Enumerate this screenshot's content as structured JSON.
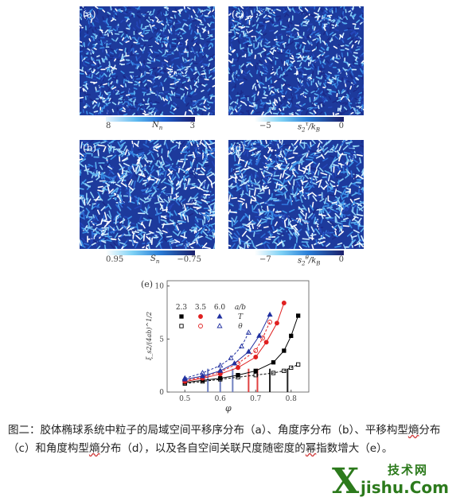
{
  "panels": [
    {
      "label": "(a)",
      "seed": 11
    },
    {
      "label": "(c)",
      "seed": 37
    },
    {
      "label": "(b)",
      "seed": 53
    },
    {
      "label": "(d)",
      "seed": 71
    }
  ],
  "colorbars": {
    "a": {
      "left": "8",
      "right": "3",
      "label_main": "N",
      "label_sub": "n"
    },
    "c": {
      "left": "−5",
      "right": "0",
      "label_main": "s",
      "label_sub": "2",
      "label_sup": "τ",
      "label_tail": "/k",
      "label_tail_sub": "B"
    },
    "b": {
      "left": "0.95",
      "right": "−0.75",
      "label_main": "S",
      "label_sub": "n"
    },
    "d": {
      "left": "−7",
      "right": "0",
      "label_main": "s",
      "label_sub": "2",
      "label_sup": "θ",
      "label_tail": "/k",
      "label_tail_sub": "B"
    }
  },
  "chart_data": {
    "type": "scatter",
    "panel_label": "(e)",
    "xlabel": "φ",
    "ylabel": "ξ_s2/(4ab)^1/2",
    "xlim": [
      0.45,
      0.85
    ],
    "ylim": [
      0,
      10.5
    ],
    "xticks": [
      "0.5",
      "0.6",
      "0.7",
      "0.8"
    ],
    "yticks": [
      "0",
      "5",
      "10"
    ],
    "legend": {
      "columns": [
        "2.3",
        "3.5",
        "6.0",
        "a/b"
      ],
      "rows": [
        "T",
        "θ"
      ]
    },
    "series": [
      {
        "name": "2.3 T",
        "color": "#000000",
        "marker": "square-filled",
        "x": [
          0.5,
          0.55,
          0.6,
          0.65,
          0.7,
          0.75,
          0.78,
          0.8,
          0.82
        ],
        "y": [
          0.9,
          1.1,
          1.3,
          1.6,
          2.0,
          2.8,
          3.9,
          5.3,
          7.2
        ]
      },
      {
        "name": "2.3 θ",
        "color": "#000000",
        "marker": "square-open",
        "x": [
          0.5,
          0.55,
          0.6,
          0.65,
          0.7,
          0.75,
          0.78,
          0.8,
          0.82
        ],
        "y": [
          0.8,
          1.0,
          1.2,
          1.4,
          1.6,
          1.8,
          2.0,
          2.3,
          2.6
        ]
      },
      {
        "name": "3.5 T",
        "color": "#e02020",
        "marker": "circle-filled",
        "x": [
          0.5,
          0.55,
          0.6,
          0.65,
          0.7,
          0.73,
          0.76,
          0.78
        ],
        "y": [
          1.0,
          1.3,
          1.7,
          2.3,
          3.3,
          4.7,
          6.5,
          8.4
        ]
      },
      {
        "name": "3.5 θ",
        "color": "#e02020",
        "marker": "circle-open",
        "x": [
          0.5,
          0.55,
          0.6,
          0.65,
          0.7,
          0.72,
          0.74
        ],
        "y": [
          1.1,
          1.4,
          1.9,
          2.7,
          3.9,
          5.1,
          6.6
        ]
      },
      {
        "name": "6.0 T",
        "color": "#2030a0",
        "marker": "triangle-filled",
        "x": [
          0.5,
          0.55,
          0.6,
          0.64,
          0.68,
          0.71,
          0.74
        ],
        "y": [
          1.2,
          1.5,
          2.0,
          2.7,
          3.8,
          5.3,
          7.3
        ]
      },
      {
        "name": "6.0 θ",
        "color": "#2030a0",
        "marker": "triangle-open",
        "x": [
          0.5,
          0.55,
          0.6,
          0.63,
          0.66,
          0.68
        ],
        "y": [
          1.3,
          1.8,
          2.5,
          3.2,
          4.3,
          5.6
        ]
      }
    ],
    "vlines": [
      {
        "x": 0.565,
        "color": "#7080c0"
      },
      {
        "x": 0.6,
        "color": "#7080c0"
      },
      {
        "x": 0.635,
        "color": "#7080c0"
      },
      {
        "x": 0.68,
        "color": "#e04040"
      },
      {
        "x": 0.705,
        "color": "#e04040"
      },
      {
        "x": 0.74,
        "color": "#222222"
      },
      {
        "x": 0.79,
        "color": "#222222"
      }
    ]
  },
  "caption": {
    "part1": "图二：胶体椭球系统中粒子的局域空间平移序分布（a）、角度序分布（b）、平移构型",
    "ul1": "熵",
    "part2": "分布（c）和角度构型",
    "ul2": "熵",
    "part3": "分布（d），以及各自空间关联尺度随密度的",
    "ul3": "幂",
    "part4": "指数增大（e）。"
  },
  "logo": {
    "small": "技术网",
    "big": "jishu.Com",
    "x": "X"
  }
}
